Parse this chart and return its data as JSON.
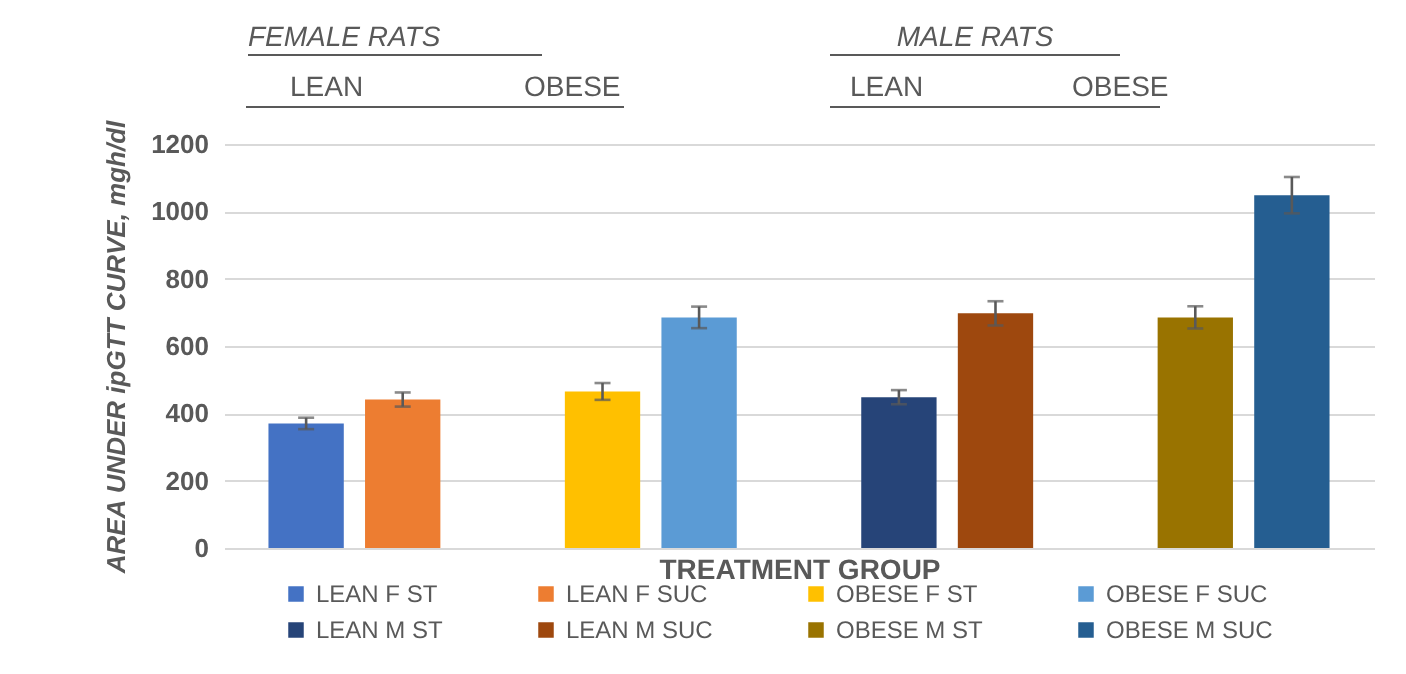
{
  "chart_data": {
    "type": "bar",
    "xlabel": "TREATMENT GROUP",
    "ylabel": "AREA UNDER ipGTT CURVE, mgh/dl",
    "annotations": [
      "FEMALE RATS",
      "LEAN",
      "OBESE",
      "MALE RATS",
      "LEAN",
      "OBESE"
    ],
    "categories": [
      null,
      null,
      null,
      null
    ],
    "series": [
      {
        "name": "LEAN F ST",
        "color": "#4472c4",
        "values": [
          370,
          null,
          null,
          null
        ],
        "errors": [
          17,
          null,
          null,
          null
        ]
      },
      {
        "name": "LEAN F SUC",
        "color": "#ed7d31",
        "values": [
          441,
          null,
          null,
          null
        ],
        "errors": [
          21,
          null,
          null,
          null
        ]
      },
      {
        "name": "OBESE F ST",
        "color": "#ffc000",
        "values": [
          null,
          465,
          null,
          null
        ],
        "errors": [
          null,
          25,
          null,
          null
        ]
      },
      {
        "name": "OBESE F SUC",
        "color": "#5b9bd5",
        "values": [
          null,
          685,
          null,
          null
        ],
        "errors": [
          null,
          32,
          null,
          null
        ]
      },
      {
        "name": "LEAN M ST",
        "color": "#264478",
        "values": [
          null,
          null,
          448,
          null
        ],
        "errors": [
          null,
          null,
          21,
          null
        ]
      },
      {
        "name": "LEAN M SUC",
        "color": "#9e480e",
        "values": [
          null,
          null,
          697,
          null
        ],
        "errors": [
          null,
          null,
          36,
          null
        ]
      },
      {
        "name": "OBESE M ST",
        "color": "#997300",
        "values": [
          null,
          null,
          null,
          685
        ],
        "errors": [
          null,
          null,
          null,
          33
        ]
      },
      {
        "name": "OBESE M SUC",
        "color": "#255e91",
        "values": [
          null,
          null,
          null,
          1048
        ],
        "errors": [
          null,
          null,
          null,
          54
        ]
      }
    ],
    "ylim": [
      0,
      1200
    ],
    "yticks": [
      0,
      200,
      400,
      600,
      800,
      1000,
      1200
    ],
    "grid": "y",
    "legend": "bottom"
  }
}
